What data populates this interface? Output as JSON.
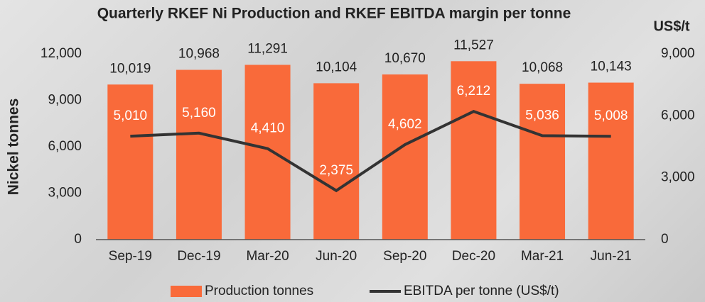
{
  "chart_data": {
    "type": "bar-line",
    "title": "Quarterly RKEF Ni Production and RKEF EBITDA margin per tonne",
    "y_label": "Nickel tonnes",
    "y2_label": "US$/t",
    "categories": [
      "Sep-19",
      "Dec-19",
      "Mar-20",
      "Jun-20",
      "Sep-20",
      "Dec-20",
      "Mar-21",
      "Jun-21"
    ],
    "series": [
      {
        "name": "Production tonnes",
        "type": "bar",
        "color": "#f96a3a",
        "values": [
          10019,
          10968,
          11291,
          10104,
          10670,
          11527,
          10068,
          10143
        ],
        "value_labels": [
          "10,019",
          "10,968",
          "11,291",
          "10,104",
          "10,670",
          "11,527",
          "10,068",
          "10,143"
        ]
      },
      {
        "name": "EBITDA per tonne (US$/t)",
        "type": "line",
        "axis": "y2",
        "color": "#333333",
        "values": [
          5010,
          5160,
          4410,
          2375,
          4602,
          6212,
          5036,
          5008
        ],
        "value_labels": [
          "5,010",
          "5,160",
          "4,410",
          "2,375",
          "4,602",
          "6,212",
          "5,036",
          "5,008"
        ]
      }
    ],
    "ylim": [
      0,
      12000
    ],
    "yticks": [
      0,
      {
        "value": 3000,
        "label": "3,000"
      },
      {
        "value": 6000,
        "label": "6,000"
      },
      {
        "value": 9000,
        "label": "9,000"
      },
      {
        "value": 12000,
        "label": "12,000"
      }
    ],
    "y2lim": [
      0,
      9000
    ],
    "y2ticks": [
      0,
      {
        "value": 3000,
        "label": "3,000"
      },
      {
        "value": 6000,
        "label": "6,000"
      },
      {
        "value": 9000,
        "label": "9,000"
      }
    ],
    "grid": false,
    "legend": "bottom"
  }
}
